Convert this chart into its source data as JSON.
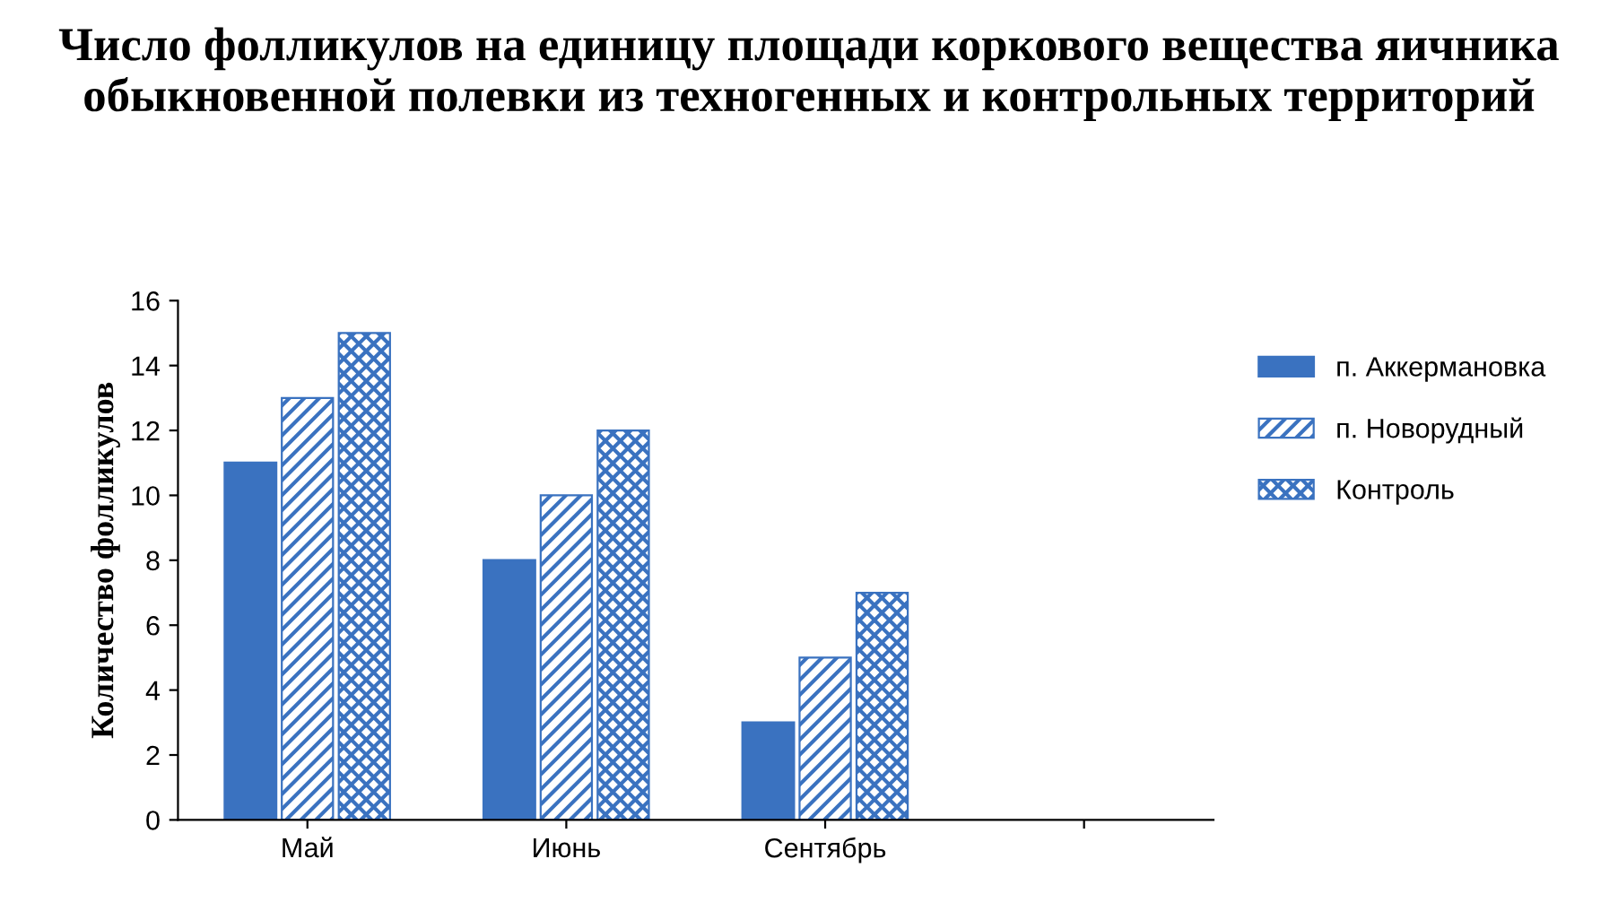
{
  "chart_data": {
    "type": "bar",
    "title": "Число фолликулов на единицу площади коркового вещества яичника обыкновенной полевки из техногенных и контрольных территорий",
    "ylabel": "Количество фолликулов",
    "categories": [
      "Май",
      "Июнь",
      "Сентябрь",
      null
    ],
    "series": [
      {
        "name": "п. Аккермановка",
        "color": "#3a72c0",
        "values": [
          11,
          8,
          3,
          null
        ]
      },
      {
        "name": "п. Новорудный",
        "color": "#3a72c0",
        "values": [
          13,
          10,
          5,
          null
        ]
      },
      {
        "name": "Контроль",
        "color": "#3a72c0",
        "values": [
          15,
          12,
          7,
          null
        ]
      }
    ],
    "ylim": [
      0,
      16
    ],
    "yticks": [
      0,
      2,
      4,
      6,
      8,
      10,
      12,
      14,
      16
    ],
    "grid": false,
    "legend": "right"
  }
}
